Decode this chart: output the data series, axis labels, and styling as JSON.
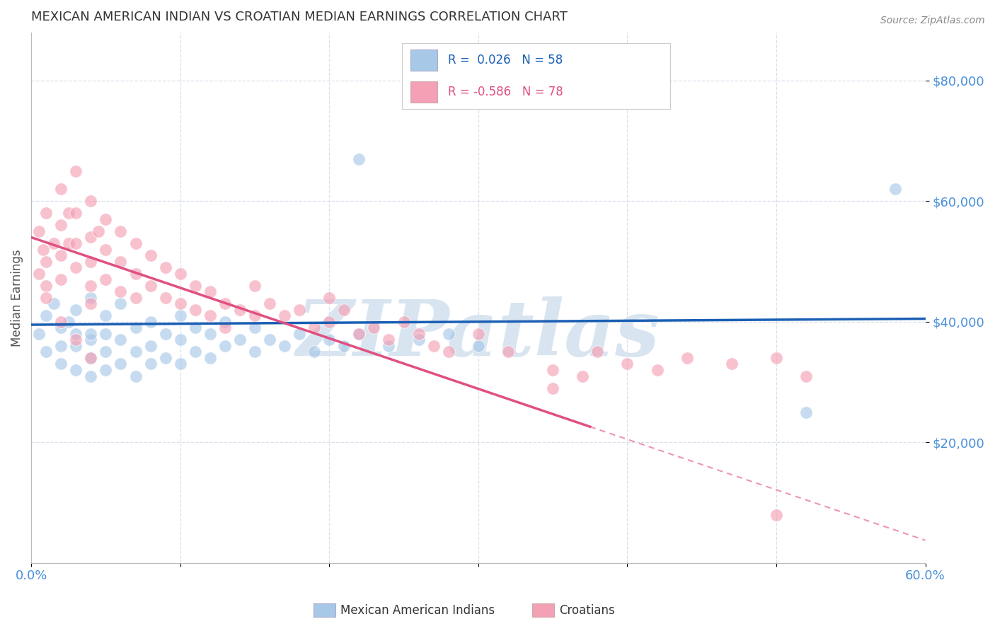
{
  "title": "MEXICAN AMERICAN INDIAN VS CROATIAN MEDIAN EARNINGS CORRELATION CHART",
  "source": "Source: ZipAtlas.com",
  "ylabel": "Median Earnings",
  "xlim": [
    0.0,
    0.6
  ],
  "ylim": [
    0,
    88000
  ],
  "yticks": [
    20000,
    40000,
    60000,
    80000
  ],
  "ytick_labels": [
    "$20,000",
    "$40,000",
    "$60,000",
    "$80,000"
  ],
  "xticks": [
    0.0,
    0.1,
    0.2,
    0.3,
    0.4,
    0.5,
    0.6
  ],
  "xtick_labels": [
    "0.0%",
    "",
    "",
    "",
    "",
    "",
    "60.0%"
  ],
  "blue_R": 0.026,
  "blue_N": 58,
  "pink_R": -0.586,
  "pink_N": 78,
  "blue_color": "#a8c8e8",
  "pink_color": "#f4a0b5",
  "blue_line_color": "#1a5fb4",
  "pink_line_color": "#e05080",
  "title_color": "#333333",
  "tick_color": "#4a90d9",
  "grid_color": "#d0d8e8",
  "watermark": "ZIPatlas",
  "watermark_color": "#d8e4f0",
  "legend_label_blue": "Mexican American Indians",
  "legend_label_pink": "Croatians",
  "blue_line_y_at_0": 39500,
  "blue_line_y_at_60": 40500,
  "pink_line_y_at_0": 54000,
  "pink_line_y_at_40": 20500,
  "blue_x": [
    0.005,
    0.01,
    0.01,
    0.015,
    0.02,
    0.02,
    0.02,
    0.025,
    0.03,
    0.03,
    0.03,
    0.03,
    0.04,
    0.04,
    0.04,
    0.04,
    0.04,
    0.05,
    0.05,
    0.05,
    0.05,
    0.06,
    0.06,
    0.06,
    0.07,
    0.07,
    0.07,
    0.08,
    0.08,
    0.08,
    0.09,
    0.09,
    0.1,
    0.1,
    0.1,
    0.11,
    0.11,
    0.12,
    0.12,
    0.13,
    0.13,
    0.14,
    0.15,
    0.15,
    0.16,
    0.17,
    0.18,
    0.19,
    0.2,
    0.21,
    0.22,
    0.24,
    0.26,
    0.28,
    0.3,
    0.22,
    0.52,
    0.58
  ],
  "blue_y": [
    38000,
    41000,
    35000,
    43000,
    36000,
    39000,
    33000,
    40000,
    42000,
    36000,
    32000,
    38000,
    44000,
    37000,
    34000,
    38000,
    31000,
    41000,
    35000,
    38000,
    32000,
    43000,
    37000,
    33000,
    39000,
    35000,
    31000,
    40000,
    36000,
    33000,
    38000,
    34000,
    41000,
    37000,
    33000,
    39000,
    35000,
    38000,
    34000,
    40000,
    36000,
    37000,
    39000,
    35000,
    37000,
    36000,
    38000,
    35000,
    37000,
    36000,
    38000,
    36000,
    37000,
    38000,
    36000,
    67000,
    25000,
    62000
  ],
  "pink_x": [
    0.005,
    0.008,
    0.01,
    0.01,
    0.01,
    0.015,
    0.02,
    0.02,
    0.02,
    0.02,
    0.025,
    0.025,
    0.03,
    0.03,
    0.03,
    0.03,
    0.04,
    0.04,
    0.04,
    0.04,
    0.04,
    0.045,
    0.05,
    0.05,
    0.05,
    0.06,
    0.06,
    0.06,
    0.07,
    0.07,
    0.07,
    0.08,
    0.08,
    0.09,
    0.09,
    0.1,
    0.1,
    0.11,
    0.11,
    0.12,
    0.12,
    0.13,
    0.13,
    0.14,
    0.15,
    0.15,
    0.16,
    0.17,
    0.18,
    0.19,
    0.2,
    0.2,
    0.21,
    0.22,
    0.23,
    0.24,
    0.25,
    0.26,
    0.27,
    0.28,
    0.3,
    0.32,
    0.35,
    0.38,
    0.4,
    0.42,
    0.44,
    0.47,
    0.5,
    0.52,
    0.005,
    0.01,
    0.02,
    0.03,
    0.04,
    0.35,
    0.5,
    0.37
  ],
  "pink_y": [
    55000,
    52000,
    58000,
    50000,
    46000,
    53000,
    62000,
    56000,
    51000,
    47000,
    58000,
    53000,
    65000,
    58000,
    53000,
    49000,
    60000,
    54000,
    50000,
    46000,
    43000,
    55000,
    57000,
    52000,
    47000,
    55000,
    50000,
    45000,
    53000,
    48000,
    44000,
    51000,
    46000,
    49000,
    44000,
    48000,
    43000,
    46000,
    42000,
    45000,
    41000,
    43000,
    39000,
    42000,
    46000,
    41000,
    43000,
    41000,
    42000,
    39000,
    44000,
    40000,
    42000,
    38000,
    39000,
    37000,
    40000,
    38000,
    36000,
    35000,
    38000,
    35000,
    32000,
    35000,
    33000,
    32000,
    34000,
    33000,
    34000,
    31000,
    48000,
    44000,
    40000,
    37000,
    34000,
    29000,
    8000,
    31000
  ]
}
